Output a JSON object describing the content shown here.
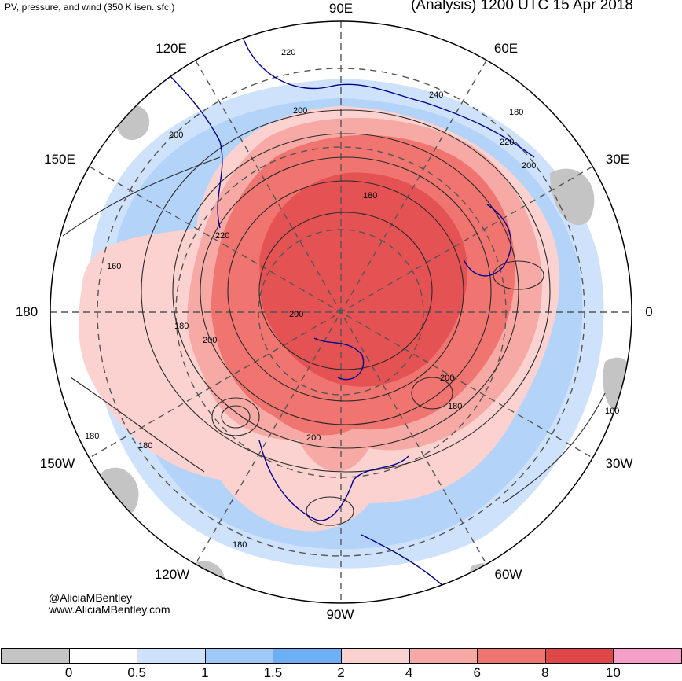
{
  "header": {
    "subtitle": "PV, pressure, and wind (350 K isen. sfc.)",
    "title": "(Analysis) 1200 UTC 15 Apr 2018"
  },
  "longitude_labels": {
    "e90": "90E",
    "e60": "60E",
    "e30": "30E",
    "z0": "0",
    "w30": "30W",
    "w60": "60W",
    "w90": "90W",
    "w120": "120W",
    "w150": "150W",
    "d180": "180",
    "e150": "150E",
    "e120": "120E"
  },
  "contour_labels": [
    "220",
    "240",
    "180",
    "220",
    "200",
    "200",
    "160",
    "180",
    "200",
    "220",
    "180",
    "200",
    "200",
    "180",
    "160",
    "180",
    "180",
    "200",
    "200",
    "180"
  ],
  "credit": {
    "handle": "@AliciaMBentley",
    "site": "www.AliciaMBentley.com"
  },
  "colorbar": {
    "colors": [
      "#c4c4c4",
      "#ffffff",
      "#cfe2fb",
      "#9fc7f8",
      "#6eaef5",
      "#fbd2cf",
      "#f7aaa5",
      "#f07470",
      "#e04548",
      "#f59ec8"
    ],
    "labels": [
      "0",
      "0.5",
      "1",
      "1.5",
      "2",
      "4",
      "6",
      "8",
      "10"
    ]
  },
  "palette": {
    "map_border": "#000000",
    "coastline": "#00008b",
    "contour": "#2a2a2a",
    "gridline": "#555555"
  }
}
